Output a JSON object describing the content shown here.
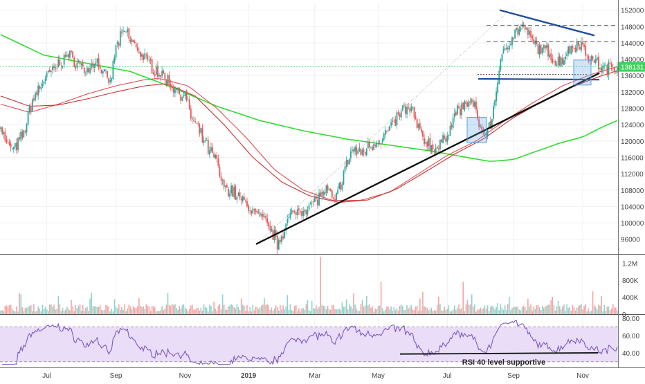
{
  "colors": {
    "up": "#26a69a",
    "down": "#ef5350",
    "ma_green": "#2fdc2f",
    "ma_red1": "#e04f4f",
    "ma_red2": "#c83232",
    "trend_black": "#111111",
    "triangle_blue": "#1f4e9c",
    "rsi_line": "#7e57c2",
    "rsi_band": "#e9ddf8",
    "price_tag": "#3bd45a",
    "axis_text": "#444444",
    "grid": "#eef0f3"
  },
  "chart_data": [
    {
      "type": "candlestick",
      "title": "",
      "x_ticks": [
        "Jul",
        "Sep",
        "Nov",
        "2019",
        "Mar",
        "May",
        "Jul",
        "Sep",
        "Nov"
      ],
      "y_ticks": [
        96000,
        100000,
        104000,
        108000,
        112000,
        116000,
        120000,
        124000,
        128000,
        132000,
        136000,
        140000,
        144000,
        148000,
        152000
      ],
      "ylim": [
        92400,
        153800
      ],
      "last_price": 138131,
      "price_anchors": [
        [
          0,
          124000
        ],
        [
          4,
          119000
        ],
        [
          10,
          118000
        ],
        [
          16,
          122000
        ],
        [
          22,
          130000
        ],
        [
          30,
          135000
        ],
        [
          38,
          138000
        ],
        [
          46,
          141000
        ],
        [
          54,
          139000
        ],
        [
          60,
          137000
        ],
        [
          66,
          140000
        ],
        [
          72,
          136000
        ],
        [
          76,
          134000
        ],
        [
          80,
          143000
        ],
        [
          86,
          147000
        ],
        [
          92,
          144000
        ],
        [
          100,
          140000
        ],
        [
          106,
          138000
        ],
        [
          112,
          136000
        ],
        [
          118,
          134000
        ],
        [
          124,
          132000
        ],
        [
          128,
          131000
        ],
        [
          132,
          126000
        ],
        [
          138,
          122000
        ],
        [
          144,
          118000
        ],
        [
          150,
          115000
        ],
        [
          154,
          109000
        ],
        [
          160,
          108000
        ],
        [
          166,
          106000
        ],
        [
          172,
          104000
        ],
        [
          178,
          102000
        ],
        [
          184,
          100000
        ],
        [
          188,
          98000
        ],
        [
          192,
          95000
        ],
        [
          196,
          98000
        ],
        [
          200,
          101000
        ],
        [
          206,
          103000
        ],
        [
          214,
          104000
        ],
        [
          220,
          106000
        ],
        [
          226,
          108000
        ],
        [
          232,
          105000
        ],
        [
          238,
          112000
        ],
        [
          244,
          118000
        ],
        [
          250,
          117000
        ],
        [
          256,
          119000
        ],
        [
          262,
          120000
        ],
        [
          268,
          122000
        ],
        [
          274,
          125000
        ],
        [
          280,
          128000
        ],
        [
          286,
          127000
        ],
        [
          292,
          121000
        ],
        [
          298,
          119000
        ],
        [
          304,
          118000
        ],
        [
          310,
          122000
        ],
        [
          316,
          127000
        ],
        [
          320,
          128000
        ],
        [
          326,
          130000
        ],
        [
          330,
          127000
        ],
        [
          334,
          122000
        ],
        [
          338,
          122500
        ],
        [
          340,
          124000
        ],
        [
          342,
          128000
        ],
        [
          344,
          133000
        ],
        [
          346,
          137000
        ],
        [
          350,
          143000
        ],
        [
          356,
          146000
        ],
        [
          362,
          148000
        ],
        [
          366,
          146000
        ],
        [
          372,
          143000
        ],
        [
          378,
          142000
        ],
        [
          382,
          141000
        ],
        [
          386,
          139000
        ],
        [
          392,
          141000
        ],
        [
          396,
          143000
        ],
        [
          402,
          144000
        ],
        [
          406,
          142000
        ],
        [
          410,
          140000
        ],
        [
          414,
          139000
        ],
        [
          418,
          137500
        ],
        [
          424,
          138000
        ],
        [
          428,
          138131
        ]
      ],
      "moving_averages": [
        {
          "name": "",
          "color_key": "ma_green",
          "points": [
            [
              0,
              146000
            ],
            [
              30,
              141000
            ],
            [
              60,
              139000
            ],
            [
              90,
              137000
            ],
            [
              120,
              133000
            ],
            [
              150,
              128500
            ],
            [
              180,
              125000
            ],
            [
              210,
              122500
            ],
            [
              240,
              120500
            ],
            [
              270,
              119000
            ],
            [
              300,
              117500
            ],
            [
              320,
              116200
            ],
            [
              340,
              115000
            ],
            [
              356,
              115500
            ],
            [
              372,
              117500
            ],
            [
              388,
              119500
            ],
            [
              404,
              121000
            ],
            [
              418,
              123500
            ],
            [
              428,
              125000
            ]
          ]
        },
        {
          "name": "",
          "color_key": "ma_red1",
          "points": [
            [
              0,
              129000
            ],
            [
              20,
              127000
            ],
            [
              40,
              129000
            ],
            [
              60,
              131500
            ],
            [
              80,
              133500
            ],
            [
              100,
              135000
            ],
            [
              110,
              135300
            ],
            [
              130,
              133500
            ],
            [
              150,
              128000
            ],
            [
              170,
              121000
            ],
            [
              190,
              113000
            ],
            [
              210,
              108000
            ],
            [
              230,
              105500
            ],
            [
              250,
              105500
            ],
            [
              270,
              107500
            ],
            [
              290,
              112000
            ],
            [
              310,
              116500
            ],
            [
              330,
              120000
            ],
            [
              350,
              125000
            ],
            [
              370,
              129500
            ],
            [
              390,
              133500
            ],
            [
              410,
              136300
            ],
            [
              428,
              138200
            ]
          ]
        },
        {
          "name": "",
          "color_key": "ma_red2",
          "points": [
            [
              0,
              131000
            ],
            [
              20,
              128500
            ],
            [
              40,
              128800
            ],
            [
              60,
              130300
            ],
            [
              80,
              132000
            ],
            [
              100,
              133500
            ],
            [
              115,
              134000
            ],
            [
              135,
              131000
            ],
            [
              155,
              124000
            ],
            [
              175,
              116000
            ],
            [
              195,
              110000
            ],
            [
              215,
              106500
            ],
            [
              235,
              105000
            ],
            [
              255,
              105600
            ],
            [
              275,
              108300
            ],
            [
              295,
              112500
            ],
            [
              315,
              116800
            ],
            [
              335,
              120500
            ],
            [
              355,
              125500
            ],
            [
              375,
              129500
            ],
            [
              395,
              133000
            ],
            [
              415,
              135700
            ],
            [
              428,
              137200
            ]
          ]
        }
      ]
    },
    {
      "type": "bar",
      "title": "",
      "y_ticks": [
        "1.2M",
        "800K",
        "400K",
        "0"
      ],
      "tick_values": [
        1200000,
        800000,
        400000,
        0
      ],
      "ylim": [
        0,
        1400000
      ]
    },
    {
      "type": "line",
      "title": "",
      "y_ticks": [
        "80.00",
        "60.00",
        "40.00"
      ],
      "tick_values": [
        80,
        60,
        40
      ],
      "ylim": [
        25,
        84
      ],
      "band": [
        30,
        70
      ],
      "annotation": "RSI 40 level supportive"
    }
  ]
}
